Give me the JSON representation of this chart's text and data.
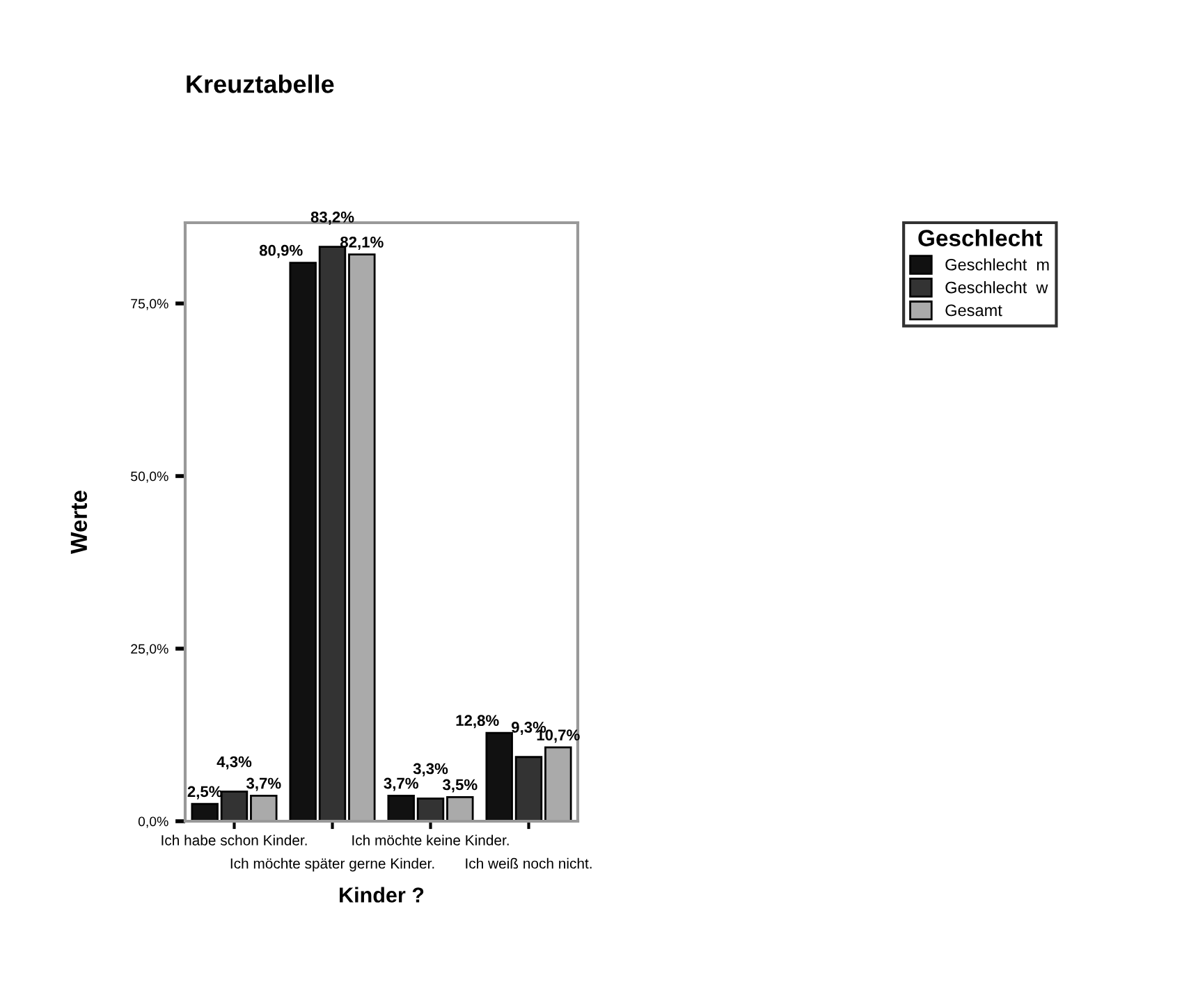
{
  "chart_data": {
    "type": "bar",
    "title": "Kreuztabelle",
    "xlabel": "Kinder ?",
    "ylabel": "Werte",
    "legend_title": "Geschlecht",
    "categories": [
      "Ich habe schon Kinder.",
      "Ich möchte später gerne Kinder.",
      "Ich möchte keine Kinder.",
      "Ich weiß noch nicht."
    ],
    "series": [
      {
        "name": "Geschlecht  m",
        "color": "#111111",
        "values": [
          2.5,
          80.9,
          3.7,
          12.8
        ],
        "value_labels": [
          "2,5%",
          "80,9%",
          "3,7%",
          "12,8%"
        ]
      },
      {
        "name": "Geschlecht  w",
        "color": "#333333",
        "values": [
          4.3,
          83.2,
          3.3,
          9.3
        ],
        "value_labels": [
          "4,3%",
          "83,2%",
          "3,3%",
          "9,3%"
        ]
      },
      {
        "name": "Gesamt",
        "color": "#aaaaaa",
        "values": [
          3.7,
          82.1,
          3.5,
          10.7
        ],
        "value_labels": [
          "3,7%",
          "82,1%",
          "3,5%",
          "10,7%"
        ]
      }
    ],
    "ylim": [
      0,
      86.7
    ],
    "yticks": [
      {
        "value": 0,
        "label": "0,0%"
      },
      {
        "value": 25,
        "label": "25,0%"
      },
      {
        "value": 50,
        "label": "50,0%"
      },
      {
        "value": 75,
        "label": "75,0%"
      }
    ],
    "grid": false,
    "legend": "top right"
  }
}
